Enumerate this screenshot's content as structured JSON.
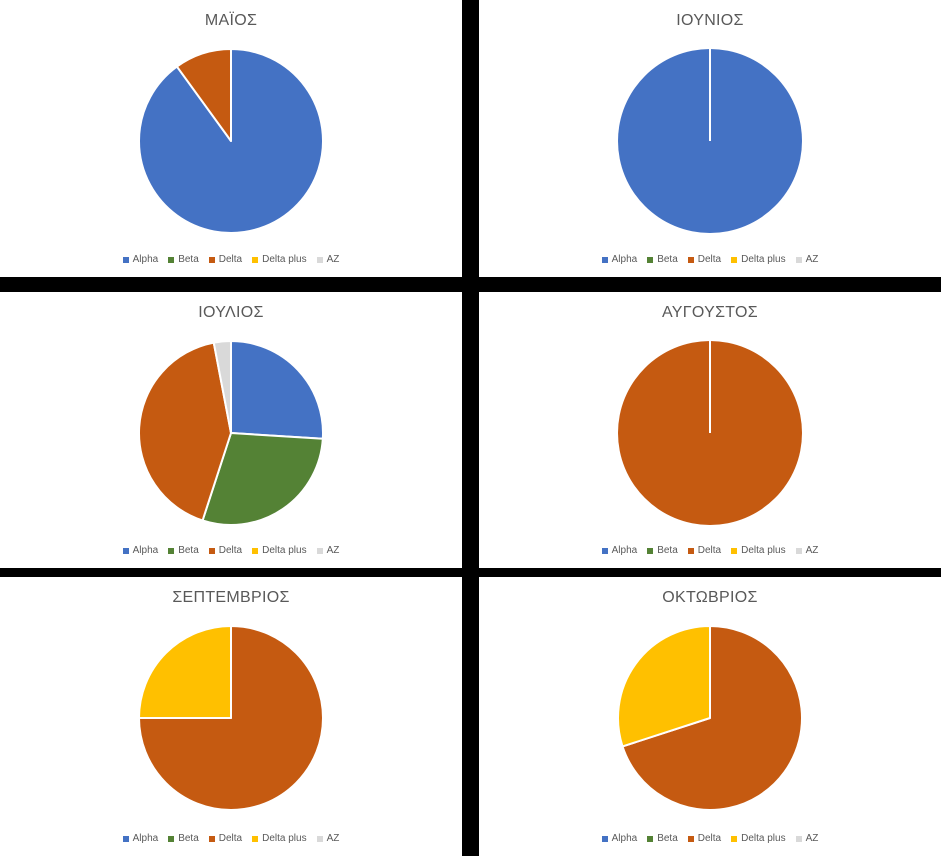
{
  "colors": {
    "Alpha": "#4472C4",
    "Beta": "#548235",
    "Delta": "#C55A11",
    "Delta plus": "#FFC000",
    "AZ": "#D9D9D9"
  },
  "legend": [
    "Alpha",
    "Beta",
    "Delta",
    "Delta plus",
    "AZ"
  ],
  "chart_data": [
    {
      "type": "pie",
      "title": "ΜΑΪΟΣ",
      "categories": [
        "Alpha",
        "Beta",
        "Delta",
        "Delta plus",
        "AZ"
      ],
      "values": [
        90,
        0,
        10,
        0,
        0
      ]
    },
    {
      "type": "pie",
      "title": "ΙΟΥΝΙΟΣ",
      "categories": [
        "Alpha",
        "Beta",
        "Delta",
        "Delta plus",
        "AZ"
      ],
      "values": [
        100,
        0,
        0,
        0,
        0
      ]
    },
    {
      "type": "pie",
      "title": "ΙΟΥΛΙΟΣ",
      "categories": [
        "Alpha",
        "Beta",
        "Delta",
        "Delta plus",
        "AZ"
      ],
      "values": [
        26,
        29,
        42,
        0,
        3
      ]
    },
    {
      "type": "pie",
      "title": "ΑΥΓΟΥΣΤΟΣ",
      "categories": [
        "Alpha",
        "Beta",
        "Delta",
        "Delta plus",
        "AZ"
      ],
      "values": [
        0,
        0,
        100,
        0,
        0
      ]
    },
    {
      "type": "pie",
      "title": "ΣΕΠΤΕΜΒΡΙΟΣ",
      "categories": [
        "Alpha",
        "Beta",
        "Delta",
        "Delta plus",
        "AZ"
      ],
      "values": [
        0,
        0,
        75,
        25,
        0
      ]
    },
    {
      "type": "pie",
      "title": "ΟΚΤΩΒΡΙΟΣ",
      "categories": [
        "Alpha",
        "Beta",
        "Delta",
        "Delta plus",
        "AZ"
      ],
      "values": [
        0,
        0,
        70,
        30,
        0
      ]
    }
  ]
}
